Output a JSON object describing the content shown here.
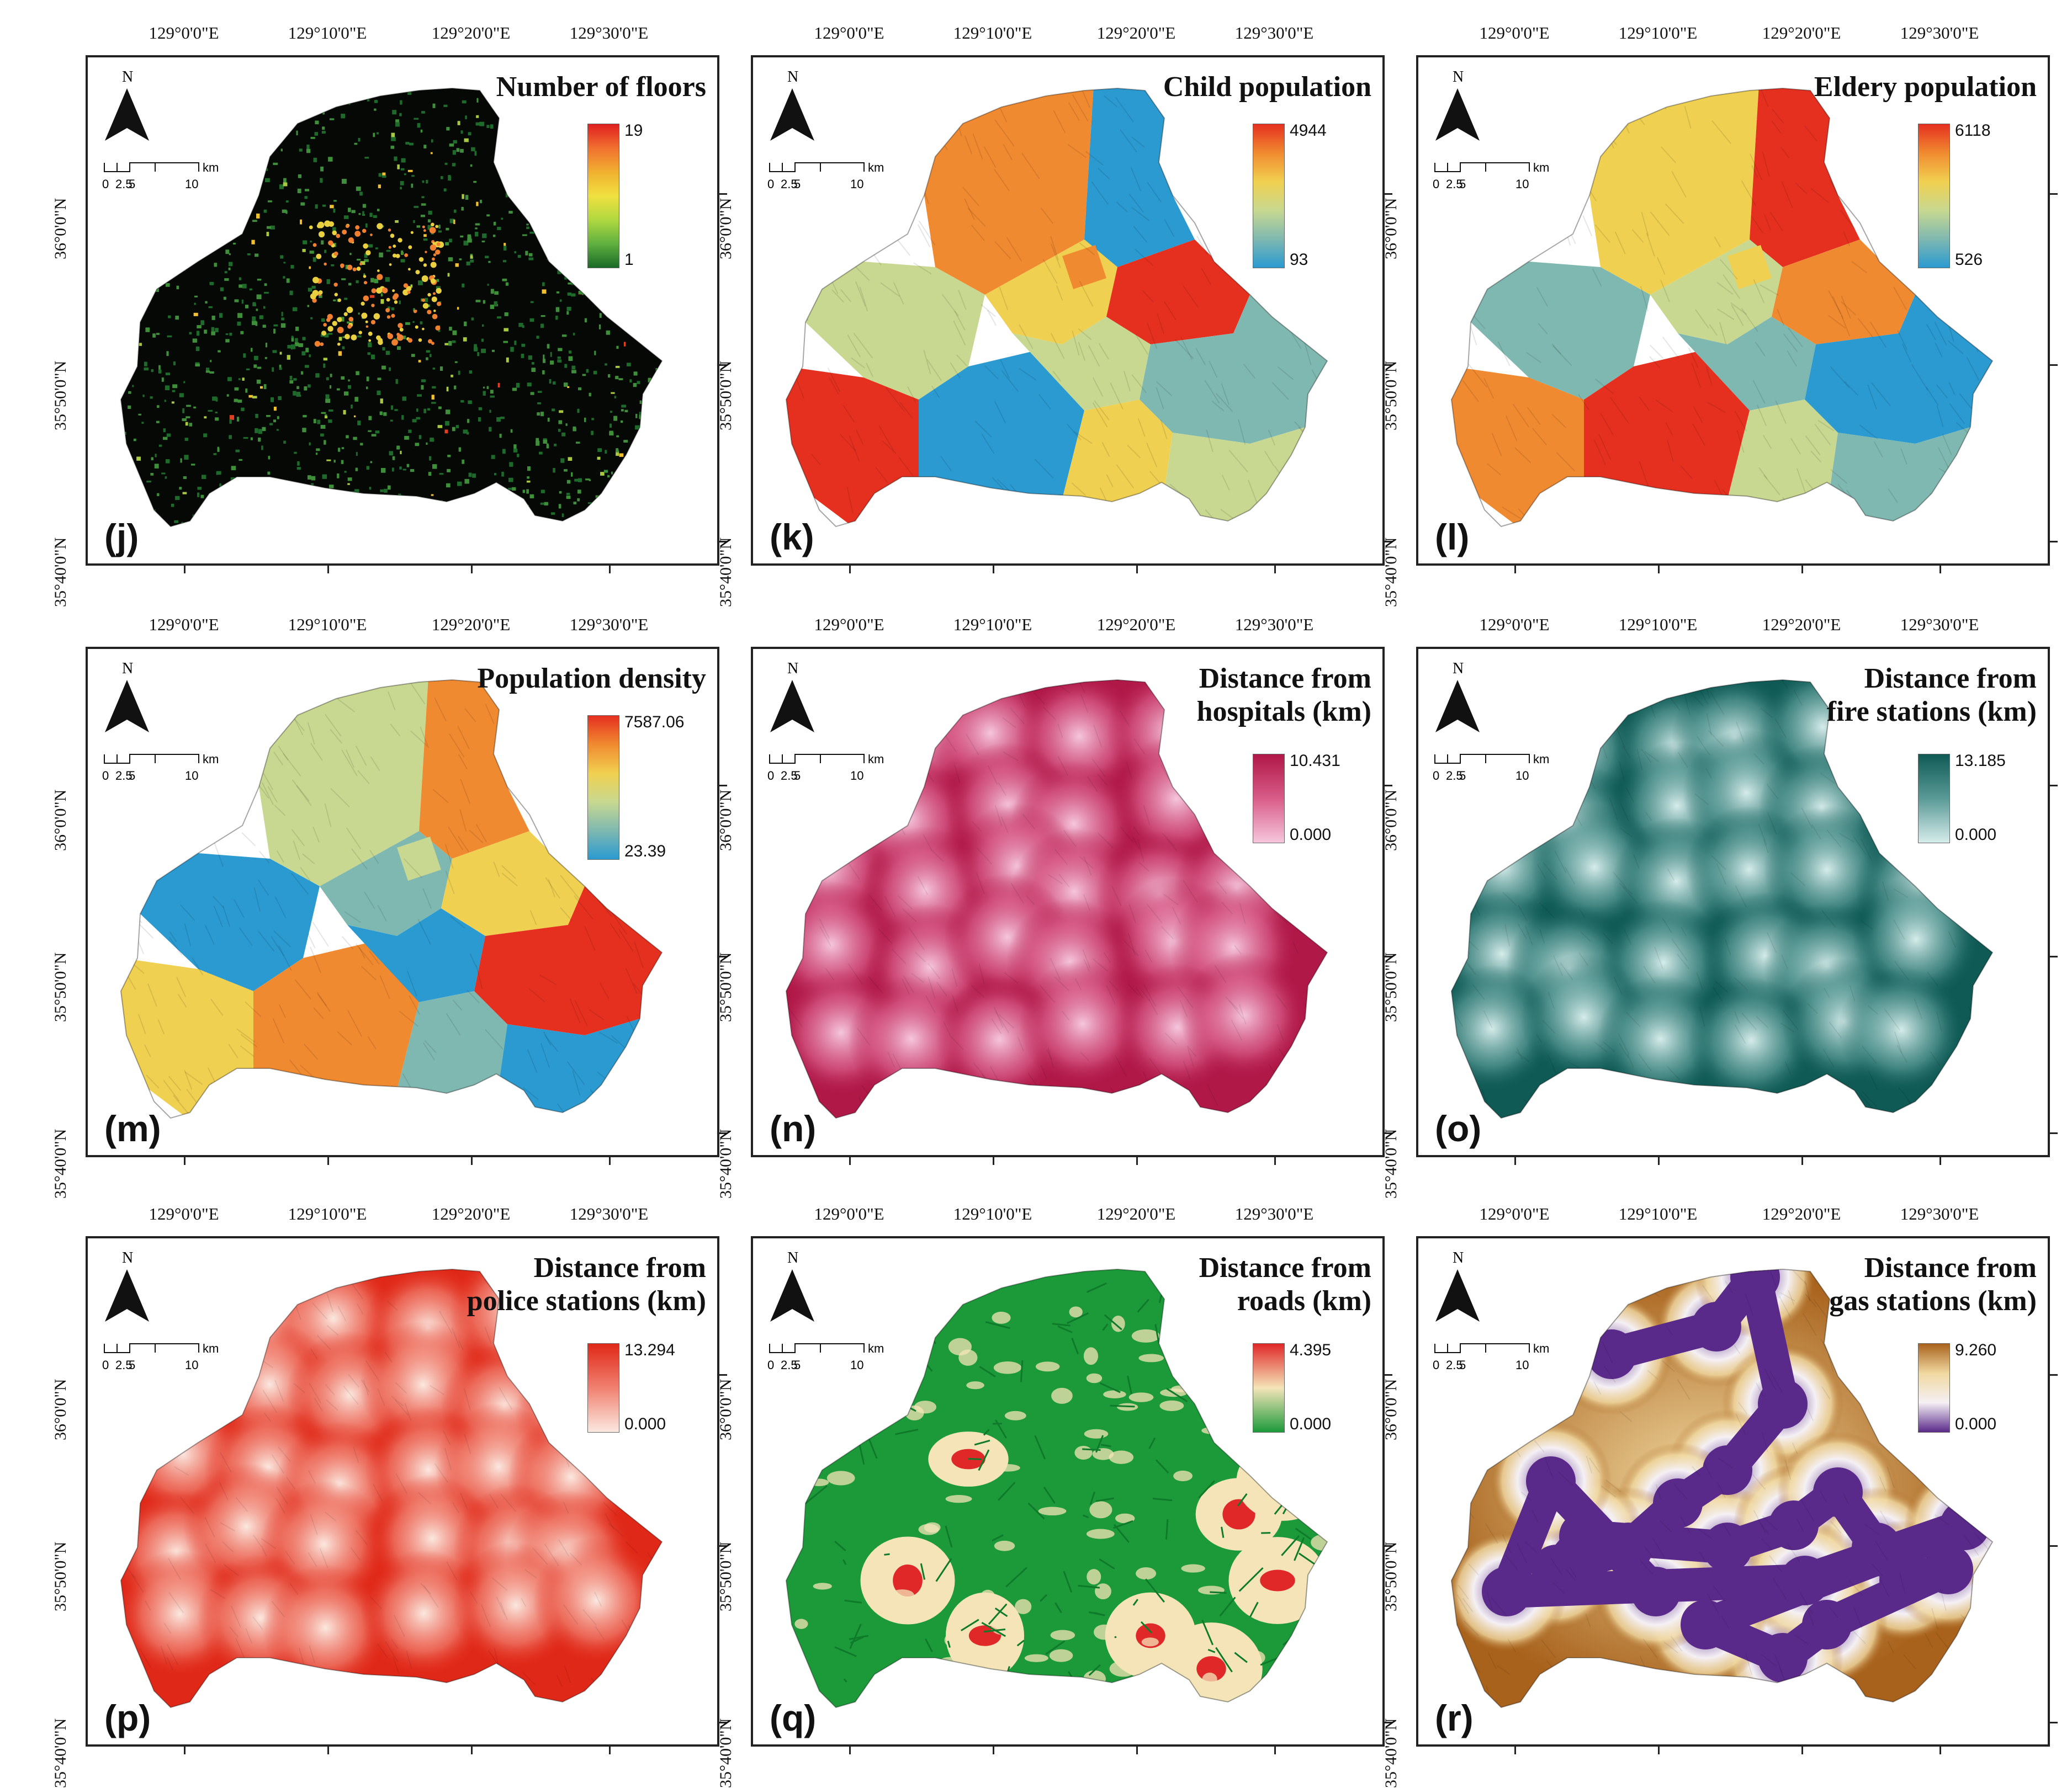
{
  "coords": {
    "lon_labels": [
      "129°0'0\"E",
      "129°10'0\"E",
      "129°20'0\"E",
      "129°30'0\"E"
    ],
    "lat_labels": [
      "36°0'0\"N",
      "35°50'0\"N",
      "35°40'0\"N"
    ]
  },
  "north_arrow": {
    "letter": "N"
  },
  "scalebar": {
    "unit": "km",
    "ticks": [
      "0",
      "2.5",
      "5",
      "10"
    ]
  },
  "panels": [
    {
      "id": "j",
      "label": "(j)",
      "title_lines": [
        "Number of floors"
      ],
      "legend_max": "19",
      "legend_min": "1",
      "ramp": [
        "#e02020",
        "#f07030",
        "#f0b030",
        "#f0e040",
        "#b0d840",
        "#60b040",
        "#1a6a28"
      ],
      "style": "floors"
    },
    {
      "id": "k",
      "label": "(k)",
      "title_lines": [
        "Child population"
      ],
      "legend_max": "4944",
      "legend_min": "93",
      "ramp": [
        "#e53020",
        "#f08a30",
        "#f0d050",
        "#c8d890",
        "#7fb8b0",
        "#2a9ad0"
      ],
      "style": "zones"
    },
    {
      "id": "l",
      "label": "(l)",
      "title_lines": [
        "Eldery population"
      ],
      "legend_max": "6118",
      "legend_min": "526",
      "ramp": [
        "#e53020",
        "#f08a30",
        "#f0d050",
        "#c8d890",
        "#7fb8b0",
        "#2a9ad0"
      ],
      "style": "zones"
    },
    {
      "id": "m",
      "label": "(m)",
      "title_lines": [
        "Population density"
      ],
      "legend_max": "7587.06",
      "legend_min": "23.39",
      "ramp": [
        "#e53020",
        "#f08a30",
        "#f0d050",
        "#c8d890",
        "#7fb8b0",
        "#2a9ad0"
      ],
      "style": "zones"
    },
    {
      "id": "n",
      "label": "(n)",
      "title_lines": [
        "Distance from",
        "hospitals (km)"
      ],
      "legend_max": "10.431",
      "legend_min": "0.000",
      "ramp": [
        "#b01848",
        "#d85c88",
        "#f5c6dc"
      ],
      "style": "distance"
    },
    {
      "id": "o",
      "label": "(o)",
      "title_lines": [
        "Distance from",
        "fire stations (km)"
      ],
      "legend_max": "13.185",
      "legend_min": "0.000",
      "ramp": [
        "#0f5a55",
        "#5a9a96",
        "#d6ecea"
      ],
      "style": "distance"
    },
    {
      "id": "p",
      "label": "(p)",
      "title_lines": [
        "Distance from",
        "police stations (km)"
      ],
      "legend_max": "13.294",
      "legend_min": "0.000",
      "ramp": [
        "#e02818",
        "#f08070",
        "#fbe8e0"
      ],
      "style": "distance"
    },
    {
      "id": "q",
      "label": "(q)",
      "title_lines": [
        "Distance from",
        "roads (km)"
      ],
      "legend_max": "4.395",
      "legend_min": "0.000",
      "ramp": [
        "#e02828",
        "#f4e4b8",
        "#1c9a3a"
      ],
      "style": "roads"
    },
    {
      "id": "r",
      "label": "(r)",
      "title_lines": [
        "Distance from",
        "gas stations (km)"
      ],
      "legend_max": "9.260",
      "legend_min": "0.000",
      "ramp": [
        "#a8621c",
        "#f0d8a0",
        "#f4f0f4",
        "#5a2a8a"
      ],
      "style": "distance"
    }
  ]
}
